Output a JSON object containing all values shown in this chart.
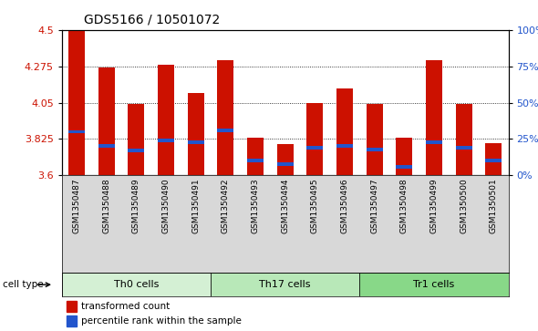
{
  "title": "GDS5166 / 10501072",
  "samples": [
    "GSM1350487",
    "GSM1350488",
    "GSM1350489",
    "GSM1350490",
    "GSM1350491",
    "GSM1350492",
    "GSM1350493",
    "GSM1350494",
    "GSM1350495",
    "GSM1350496",
    "GSM1350497",
    "GSM1350498",
    "GSM1350499",
    "GSM1350500",
    "GSM1350501"
  ],
  "transformed_counts": [
    4.5,
    4.265,
    4.04,
    4.285,
    4.11,
    4.31,
    3.835,
    3.795,
    4.05,
    4.135,
    4.04,
    3.835,
    4.31,
    4.04,
    3.8
  ],
  "percentile_ranks": [
    30,
    20,
    17,
    24,
    23,
    31,
    10,
    8,
    19,
    20,
    18,
    6,
    23,
    19,
    10
  ],
  "cell_types": [
    {
      "label": "Th0 cells",
      "start": 0,
      "end": 5,
      "color": "#d4f0d4"
    },
    {
      "label": "Th17 cells",
      "start": 5,
      "end": 10,
      "color": "#b8e8b8"
    },
    {
      "label": "Tr1 cells",
      "start": 10,
      "end": 15,
      "color": "#88d888"
    }
  ],
  "ylim_left": [
    3.6,
    4.5
  ],
  "ylim_right": [
    0,
    100
  ],
  "yticks_left": [
    3.6,
    3.825,
    4.05,
    4.275,
    4.5
  ],
  "yticks_right": [
    0,
    25,
    50,
    75,
    100
  ],
  "ytick_labels_right": [
    "0%",
    "25%",
    "50%",
    "75%",
    "100%"
  ],
  "bar_color": "#cc1100",
  "blue_color": "#2255cc",
  "bar_width": 0.55,
  "legend_items": [
    "transformed count",
    "percentile rank within the sample"
  ],
  "bg_color": "#d8d8d8",
  "plot_bg": "#ffffff",
  "cell_type_label": "cell type",
  "title_fontsize": 10,
  "axis_fontsize": 8
}
